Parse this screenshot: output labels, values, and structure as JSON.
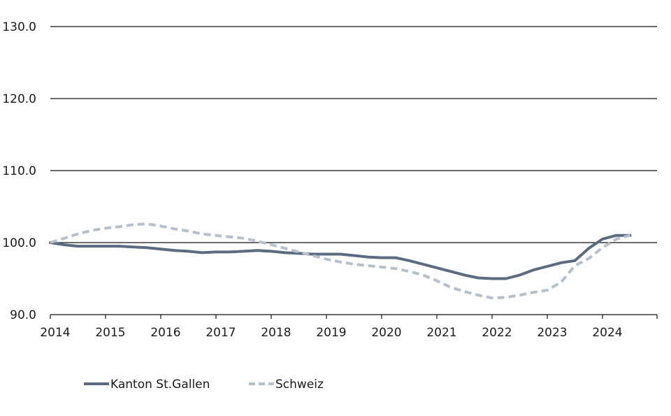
{
  "chart_data": {
    "type": "line",
    "title": "",
    "xlabel": "",
    "ylabel": "",
    "xlim": [
      2014,
      2025
    ],
    "ylim": [
      90,
      130
    ],
    "y_ticks": [
      90.0,
      100.0,
      110.0,
      120.0,
      130.0
    ],
    "y_tick_labels": [
      "90.0",
      "100.0",
      "110.0",
      "120.0",
      "130.0"
    ],
    "x_ticks": [
      2014,
      2015,
      2016,
      2017,
      2018,
      2019,
      2020,
      2021,
      2022,
      2023,
      2024
    ],
    "x_tick_labels": [
      "2014",
      "2015",
      "2016",
      "2017",
      "2018",
      "2019",
      "2020",
      "2021",
      "2022",
      "2023",
      "2024"
    ],
    "grid": "horizontal",
    "legend_position": "bottom-left",
    "series": [
      {
        "name": "Kanton St.Gallen",
        "color": "#5b6b80",
        "style": "solid",
        "x": [
          2014.0,
          2014.25,
          2014.5,
          2014.75,
          2015.0,
          2015.25,
          2015.5,
          2015.75,
          2016.0,
          2016.25,
          2016.5,
          2016.75,
          2017.0,
          2017.25,
          2017.5,
          2017.75,
          2018.0,
          2018.25,
          2018.5,
          2018.75,
          2019.0,
          2019.25,
          2019.5,
          2019.75,
          2020.0,
          2020.25,
          2020.5,
          2020.75,
          2021.0,
          2021.25,
          2021.5,
          2021.75,
          2022.0,
          2022.25,
          2022.5,
          2022.75,
          2023.0,
          2023.25,
          2023.5,
          2023.75,
          2024.0,
          2024.25,
          2024.5
        ],
        "values": [
          100.0,
          99.7,
          99.5,
          99.5,
          99.5,
          99.5,
          99.4,
          99.3,
          99.1,
          98.9,
          98.8,
          98.6,
          98.7,
          98.7,
          98.8,
          98.9,
          98.8,
          98.6,
          98.5,
          98.4,
          98.4,
          98.4,
          98.2,
          98.0,
          97.9,
          97.9,
          97.5,
          97.0,
          96.5,
          96.0,
          95.5,
          95.1,
          95.0,
          95.0,
          95.5,
          96.2,
          96.7,
          97.2,
          97.5,
          99.2,
          100.5,
          101.0,
          101.0
        ]
      },
      {
        "name": "Schweiz",
        "color": "#b8bfcc",
        "style": "dashed",
        "x": [
          2014.0,
          2014.25,
          2014.5,
          2014.75,
          2015.0,
          2015.25,
          2015.5,
          2015.75,
          2016.0,
          2016.25,
          2016.5,
          2016.75,
          2017.0,
          2017.25,
          2017.5,
          2017.75,
          2018.0,
          2018.25,
          2018.5,
          2018.75,
          2019.0,
          2019.25,
          2019.5,
          2019.75,
          2020.0,
          2020.25,
          2020.5,
          2020.75,
          2021.0,
          2021.25,
          2021.5,
          2021.75,
          2022.0,
          2022.25,
          2022.5,
          2022.75,
          2023.0,
          2023.25,
          2023.5,
          2023.75,
          2024.0,
          2024.25,
          2024.5
        ],
        "values": [
          100.0,
          100.6,
          101.2,
          101.7,
          102.0,
          102.2,
          102.5,
          102.6,
          102.3,
          101.9,
          101.6,
          101.2,
          101.0,
          100.8,
          100.6,
          100.2,
          99.7,
          99.2,
          98.7,
          98.2,
          97.7,
          97.3,
          97.0,
          96.8,
          96.6,
          96.4,
          96.0,
          95.5,
          94.7,
          93.8,
          93.2,
          92.7,
          92.3,
          92.4,
          92.7,
          93.1,
          93.4,
          94.5,
          96.8,
          97.8,
          99.3,
          100.5,
          101.0
        ]
      }
    ]
  }
}
